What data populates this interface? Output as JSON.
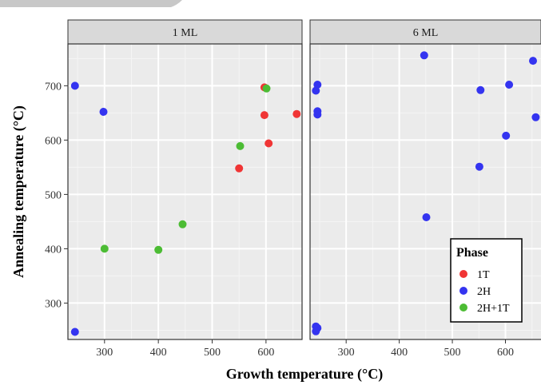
{
  "chart_data": {
    "type": "scatter",
    "xlabel": "Growth temperature (°C)",
    "ylabel": "Annealing temperature (°C)",
    "xticks": [
      300,
      400,
      500,
      600
    ],
    "yticks": [
      300,
      400,
      500,
      600,
      700
    ],
    "grid": true,
    "legend": {
      "title": "Phase",
      "position": "bottom-right",
      "entries": [
        {
          "label": "1T",
          "color": "#f03535"
        },
        {
          "label": "2H",
          "color": "#3434f0"
        },
        {
          "label": "2H+1T",
          "color": "#4cbc34"
        }
      ]
    },
    "panels": [
      {
        "strip_label": "1 ML",
        "points": [
          {
            "phase": "2H",
            "x": 245,
            "y": 700
          },
          {
            "phase": "2H",
            "x": 298,
            "y": 652
          },
          {
            "phase": "2H",
            "x": 245,
            "y": 247
          },
          {
            "phase": "2H+1T",
            "x": 300,
            "y": 400
          },
          {
            "phase": "2H+1T",
            "x": 400,
            "y": 398
          },
          {
            "phase": "2H+1T",
            "x": 445,
            "y": 445
          },
          {
            "phase": "2H+1T",
            "x": 552,
            "y": 589
          },
          {
            "phase": "1T",
            "x": 550,
            "y": 548
          },
          {
            "phase": "1T",
            "x": 597,
            "y": 646
          },
          {
            "phase": "1T",
            "x": 605,
            "y": 594
          },
          {
            "phase": "1T",
            "x": 657,
            "y": 648
          },
          {
            "phase": "1T",
            "x": 597,
            "y": 697
          },
          {
            "phase": "2H+1T",
            "x": 601,
            "y": 695
          }
        ]
      },
      {
        "strip_label": "6 ML",
        "points": [
          {
            "phase": "2H",
            "x": 246,
            "y": 702
          },
          {
            "phase": "2H",
            "x": 243,
            "y": 691
          },
          {
            "phase": "2H",
            "x": 246,
            "y": 653
          },
          {
            "phase": "2H",
            "x": 246,
            "y": 647
          },
          {
            "phase": "2H",
            "x": 243,
            "y": 257
          },
          {
            "phase": "2H",
            "x": 246,
            "y": 254
          },
          {
            "phase": "2H",
            "x": 243,
            "y": 248
          },
          {
            "phase": "2H",
            "x": 447,
            "y": 756
          },
          {
            "phase": "2H",
            "x": 451,
            "y": 458
          },
          {
            "phase": "2H",
            "x": 553,
            "y": 692
          },
          {
            "phase": "2H",
            "x": 551,
            "y": 551
          },
          {
            "phase": "2H",
            "x": 607,
            "y": 702
          },
          {
            "phase": "2H",
            "x": 601,
            "y": 608
          },
          {
            "phase": "2H",
            "x": 652,
            "y": 746
          },
          {
            "phase": "2H",
            "x": 657,
            "y": 642
          }
        ]
      }
    ]
  },
  "window_fragment": {
    "color": "#c8c8c8"
  }
}
